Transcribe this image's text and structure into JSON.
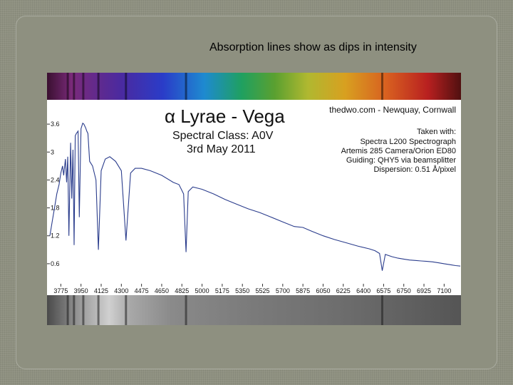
{
  "caption": "Absorption lines show as dips in intensity",
  "colors": {
    "slide_bg": "#8e9080",
    "series": "#2a3c8c"
  },
  "chart_data": {
    "type": "line",
    "title": "α Lyrae - Vega",
    "subtitle_lines": [
      "Spectral Class: A0V",
      "3rd May 2011"
    ],
    "credit": "thedwo.com - Newquay, Cornwall",
    "info_lines": [
      "Taken with:",
      "Spectra L200 Spectrograph",
      "Artemis 285 Camera/Orion ED80",
      "Guiding: QHY5 via beamsplitter",
      "Dispersion: 0.51 Å/pixel"
    ],
    "xlim": [
      3680,
      7240
    ],
    "ylim": [
      0.2,
      4.0
    ],
    "x_ticks": [
      3775,
      3950,
      4125,
      4300,
      4475,
      4650,
      4825,
      5000,
      5175,
      5350,
      5525,
      5700,
      5875,
      6050,
      6225,
      6400,
      6575,
      6750,
      6925,
      7100
    ],
    "y_ticks": [
      0.6,
      1.2,
      1.8,
      2.4,
      3,
      3.6
    ],
    "y_tick_labels": [
      "0.6",
      "1.2",
      "1.8",
      "2.4",
      "3",
      "3.6"
    ],
    "series": [
      {
        "x": [
          3680,
          3700,
          3720,
          3740,
          3760,
          3775,
          3790,
          3800,
          3815,
          3825,
          3835,
          3845,
          3860,
          3870,
          3880,
          3890,
          3900,
          3910,
          3925,
          3935,
          3950,
          3965,
          3975,
          3990,
          4000,
          4010,
          4025,
          4050,
          4080,
          4101,
          4125,
          4160,
          4200,
          4250,
          4300,
          4340,
          4380,
          4420,
          4475,
          4550,
          4650,
          4750,
          4800,
          4840,
          4861,
          4880,
          4920,
          5000,
          5100,
          5200,
          5300,
          5400,
          5500,
          5600,
          5700,
          5800,
          5875,
          5950,
          6050,
          6150,
          6250,
          6350,
          6450,
          6500,
          6540,
          6563,
          6590,
          6650,
          6700,
          6750,
          6800,
          6850,
          6900,
          6950,
          7000,
          7050,
          7100,
          7150,
          7200,
          7240
        ],
        "y": [
          1.2,
          1.5,
          1.8,
          2.1,
          2.3,
          2.55,
          2.7,
          2.5,
          2.85,
          2.35,
          2.9,
          1.2,
          3.2,
          2.0,
          3.05,
          1.0,
          3.35,
          3.4,
          3.45,
          1.6,
          3.5,
          3.62,
          3.6,
          3.52,
          3.45,
          3.4,
          2.8,
          2.7,
          2.4,
          0.9,
          2.6,
          2.85,
          2.9,
          2.8,
          2.6,
          1.1,
          2.55,
          2.65,
          2.65,
          2.6,
          2.5,
          2.35,
          2.3,
          2.1,
          0.85,
          2.15,
          2.25,
          2.2,
          2.1,
          1.98,
          1.88,
          1.78,
          1.7,
          1.6,
          1.5,
          1.4,
          1.38,
          1.3,
          1.2,
          1.12,
          1.05,
          0.98,
          0.92,
          0.88,
          0.82,
          0.45,
          0.8,
          0.75,
          0.72,
          0.7,
          0.68,
          0.67,
          0.66,
          0.65,
          0.64,
          0.62,
          0.6,
          0.58,
          0.56,
          0.55
        ]
      }
    ]
  }
}
